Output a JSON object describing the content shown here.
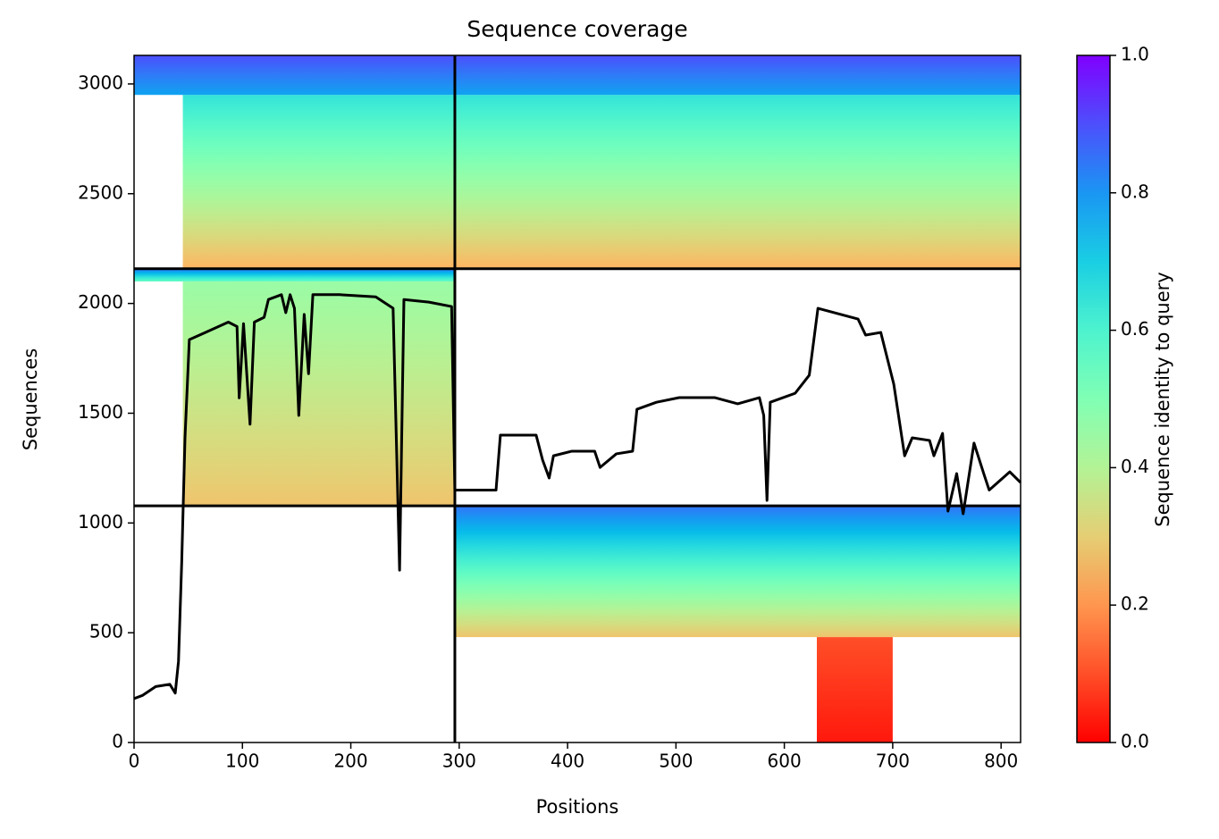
{
  "chart_data": {
    "type": "coverage",
    "title": "Sequence coverage",
    "x_label": "Positions",
    "y_label": "Sequences",
    "xlim": [
      0,
      818
    ],
    "ylim": [
      0,
      3130
    ],
    "xticks": [
      0,
      100,
      200,
      300,
      400,
      500,
      600,
      700,
      800
    ],
    "yticks": [
      0,
      500,
      1000,
      1500,
      2000,
      2500,
      3000
    ],
    "blocks": [
      {
        "x": [
          45,
          296
        ],
        "y": [
          2158,
          2950
        ],
        "identity": [
          0.25,
          0.65
        ]
      },
      {
        "x": [
          0,
          296
        ],
        "y": [
          2950,
          3130
        ],
        "identity": [
          0.78,
          0.9
        ]
      },
      {
        "x": [
          296,
          818
        ],
        "y": [
          2158,
          2950
        ],
        "identity": [
          0.25,
          0.65
        ]
      },
      {
        "x": [
          296,
          818
        ],
        "y": [
          2950,
          3130
        ],
        "identity": [
          0.78,
          0.9
        ]
      },
      {
        "x": [
          45,
          296
        ],
        "y": [
          1078,
          2100
        ],
        "identity": [
          0.28,
          0.45
        ]
      },
      {
        "x": [
          0,
          296
        ],
        "y": [
          2100,
          2158
        ],
        "identity": [
          0.55,
          0.85
        ]
      },
      {
        "x": [
          296,
          818
        ],
        "y": [
          480,
          1078
        ],
        "identity": [
          0.28,
          0.85
        ]
      },
      {
        "x": [
          630,
          700
        ],
        "y": [
          0,
          480
        ],
        "identity": [
          0.03,
          0.1
        ]
      }
    ],
    "dividers": {
      "x": [
        296
      ],
      "y": [
        1078,
        2158
      ]
    },
    "coverage": {
      "color": "#000000",
      "x": [
        0,
        8,
        20,
        33,
        38,
        41,
        44,
        47,
        51,
        66,
        87,
        95,
        97,
        101,
        107,
        111,
        120,
        124,
        136,
        140,
        144,
        148,
        152,
        157,
        161,
        165,
        190,
        223,
        239,
        245,
        249,
        272,
        293,
        296,
        313,
        334,
        338,
        371,
        377,
        383,
        387,
        404,
        425,
        430,
        445,
        460,
        464,
        482,
        503,
        536,
        557,
        577,
        581,
        584,
        587,
        610,
        623,
        631,
        668,
        675,
        689,
        701,
        711,
        718,
        734,
        738,
        746,
        751,
        759,
        765,
        775,
        784,
        789,
        808,
        818
      ],
      "values": [
        200,
        215,
        255,
        265,
        225,
        370,
        825,
        1388,
        1835,
        1868,
        1915,
        1895,
        1570,
        1908,
        1450,
        1915,
        1937,
        2018,
        2040,
        1958,
        2040,
        1978,
        1490,
        1950,
        1680,
        2040,
        2040,
        2030,
        1978,
        785,
        2018,
        2006,
        1986,
        1150,
        1150,
        1150,
        1400,
        1400,
        1286,
        1205,
        1306,
        1327,
        1327,
        1253,
        1315,
        1327,
        1518,
        1550,
        1571,
        1571,
        1543,
        1571,
        1490,
        1103,
        1550,
        1591,
        1673,
        1978,
        1929,
        1856,
        1868,
        1632,
        1306,
        1388,
        1376,
        1306,
        1408,
        1054,
        1225,
        1042,
        1364,
        1225,
        1150,
        1233,
        1184
      ]
    },
    "colormap": "rainbow_r",
    "colorbar": {
      "label": "Sequence identity to query",
      "lim": [
        0,
        1
      ],
      "ticks": [
        {
          "value": 0,
          "label": "0.0"
        },
        0.2,
        0.4,
        0.6,
        0.8,
        {
          "value": 1,
          "label": "1.0"
        }
      ]
    }
  }
}
